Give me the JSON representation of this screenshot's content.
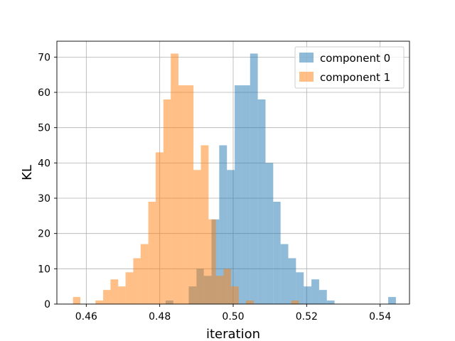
{
  "chart_data": {
    "type": "histogram",
    "title": "",
    "xlabel": "iteration",
    "ylabel": "KL",
    "xlim": [
      0.452,
      0.548
    ],
    "ylim": [
      0,
      74.5
    ],
    "xticks": [
      0.46,
      0.48,
      0.5,
      0.52,
      0.54
    ],
    "xtick_labels": [
      "0.46",
      "0.48",
      "0.50",
      "0.52",
      "0.54"
    ],
    "yticks": [
      0,
      10,
      20,
      30,
      40,
      50,
      60,
      70
    ],
    "ytick_labels": [
      "0",
      "10",
      "20",
      "30",
      "40",
      "50",
      "60",
      "70"
    ],
    "grid": true,
    "legend_position": "top-right",
    "series": [
      {
        "name": "component 0",
        "color": "#1f77b4",
        "opacity": 0.5,
        "bin_edges": [
          0.4816,
          0.4837,
          0.4858,
          0.4879,
          0.49,
          0.492,
          0.4941,
          0.4962,
          0.4983,
          0.5004,
          0.5025,
          0.5046,
          0.5067,
          0.5088,
          0.5109,
          0.5129,
          0.515,
          0.5171,
          0.5192,
          0.5213,
          0.5234,
          0.5255,
          0.5276,
          0.5297,
          0.5318,
          0.5338,
          0.5359,
          0.538,
          0.5401,
          0.5422,
          0.5443
        ],
        "counts": [
          1,
          0,
          0,
          5,
          10,
          8,
          24,
          45,
          38,
          62,
          62,
          71,
          58,
          40,
          29,
          17,
          13,
          9,
          5,
          7,
          4,
          1,
          0,
          0,
          0,
          0,
          0,
          0,
          0,
          2
        ]
      },
      {
        "name": "component 1",
        "color": "#ff7f0e",
        "opacity": 0.5,
        "bin_edges": [
          0.4564,
          0.4584,
          0.4605,
          0.4625,
          0.4646,
          0.4666,
          0.4687,
          0.4707,
          0.4728,
          0.4748,
          0.4769,
          0.4789,
          0.481,
          0.483,
          0.4851,
          0.4871,
          0.4892,
          0.4912,
          0.4933,
          0.4953,
          0.4974,
          0.4994,
          0.5015,
          0.5035,
          0.5056,
          0.5076,
          0.5097,
          0.5117,
          0.5138,
          0.5158,
          0.5179
        ],
        "counts": [
          2,
          0,
          0,
          1,
          4,
          7,
          5,
          9,
          13,
          17,
          29,
          43,
          58,
          71,
          62,
          62,
          38,
          45,
          24,
          8,
          10,
          5,
          0,
          1,
          0,
          0,
          0,
          0,
          0,
          1
        ]
      }
    ]
  }
}
